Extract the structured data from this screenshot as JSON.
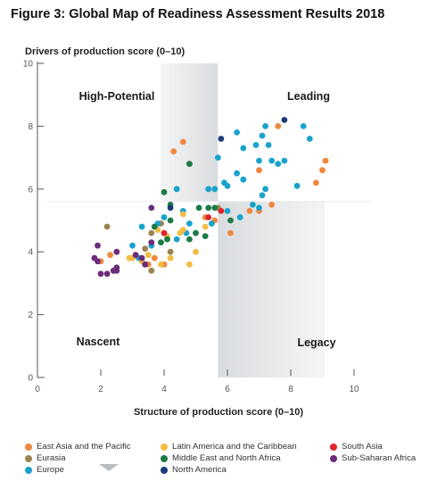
{
  "figure_title": "Figure 3: Global Map of Readiness Assessment Results 2018",
  "chart_data": {
    "type": "scatter",
    "title": "Figure 3: Global Map of Readiness Assessment Results 2018",
    "xlabel": "Structure of production score (0–10)",
    "ylabel": "Drivers of production score (0–10)",
    "xlim": [
      0,
      10
    ],
    "ylim": [
      0,
      10
    ],
    "x_ticks": [
      "0",
      "2",
      "4",
      "6",
      "8",
      "10"
    ],
    "y_ticks": [
      "0",
      "2",
      "4",
      "6",
      "8",
      "10"
    ],
    "grid": false,
    "threshold_x": 5.7,
    "threshold_y": 5.6,
    "quadrant_labels": {
      "top_left": "High-Potential",
      "top_right": "Leading",
      "bottom_left": "Nascent",
      "bottom_right": "Legacy"
    },
    "legend_position": "bottom",
    "series": [
      {
        "name": "East Asia and the Pacific",
        "color": "#f0883e",
        "points": [
          [
            4.3,
            7.2
          ],
          [
            4.6,
            7.5
          ],
          [
            4.8,
            6.8
          ],
          [
            7.0,
            6.6
          ],
          [
            7.6,
            8.0
          ],
          [
            8.8,
            6.2
          ],
          [
            9.0,
            6.6
          ],
          [
            9.1,
            6.9
          ],
          [
            7.0,
            5.3
          ],
          [
            7.4,
            5.5
          ],
          [
            6.1,
            4.6
          ],
          [
            4.0,
            3.6
          ],
          [
            3.7,
            3.8
          ],
          [
            3.5,
            3.6
          ],
          [
            2.3,
            3.9
          ],
          [
            2.0,
            3.7
          ],
          [
            5.6,
            5.0
          ],
          [
            5.3,
            5.1
          ],
          [
            6.7,
            5.3
          ]
        ]
      },
      {
        "name": "Eurasia",
        "color": "#9c8451",
        "points": [
          [
            2.2,
            4.8
          ],
          [
            3.4,
            4.1
          ],
          [
            3.6,
            4.6
          ],
          [
            3.9,
            4.9
          ],
          [
            5.7,
            5.4
          ],
          [
            4.2,
            4.0
          ],
          [
            3.6,
            3.4
          ]
        ]
      },
      {
        "name": "Europe",
        "color": "#1aa3cc",
        "points": [
          [
            5.4,
            6.0
          ],
          [
            5.6,
            6.0
          ],
          [
            5.7,
            7.0
          ],
          [
            6.0,
            6.1
          ],
          [
            6.3,
            6.5
          ],
          [
            6.5,
            6.3
          ],
          [
            6.3,
            7.8
          ],
          [
            6.5,
            7.3
          ],
          [
            6.9,
            7.4
          ],
          [
            7.0,
            6.9
          ],
          [
            7.1,
            7.7
          ],
          [
            7.2,
            8.0
          ],
          [
            7.3,
            7.4
          ],
          [
            7.4,
            6.9
          ],
          [
            7.6,
            6.8
          ],
          [
            7.8,
            6.9
          ],
          [
            8.2,
            6.1
          ],
          [
            8.4,
            8.0
          ],
          [
            8.6,
            7.6
          ],
          [
            7.1,
            5.8
          ],
          [
            7.2,
            6.0
          ],
          [
            6.8,
            5.5
          ],
          [
            6.4,
            5.1
          ],
          [
            7.0,
            5.4
          ],
          [
            6.0,
            5.3
          ],
          [
            5.5,
            4.9
          ],
          [
            4.8,
            4.9
          ],
          [
            4.6,
            5.3
          ],
          [
            4.7,
            4.6
          ],
          [
            4.4,
            4.4
          ],
          [
            4.0,
            5.1
          ],
          [
            3.8,
            4.9
          ],
          [
            3.6,
            4.2
          ],
          [
            4.4,
            6.0
          ],
          [
            3.3,
            4.8
          ],
          [
            3.0,
            4.2
          ],
          [
            3.2,
            3.8
          ],
          [
            5.9,
            6.2
          ]
        ]
      },
      {
        "name": "Latin America and the Caribbean",
        "color": "#f3bd45",
        "points": [
          [
            2.9,
            3.8
          ],
          [
            3.0,
            3.8
          ],
          [
            3.3,
            3.7
          ],
          [
            3.5,
            3.9
          ],
          [
            3.9,
            3.6
          ],
          [
            4.2,
            3.8
          ],
          [
            4.5,
            4.6
          ],
          [
            4.6,
            4.7
          ],
          [
            4.8,
            3.6
          ],
          [
            5.0,
            4.0
          ],
          [
            5.3,
            4.8
          ],
          [
            3.8,
            4.7
          ],
          [
            4.1,
            4.5
          ],
          [
            4.6,
            5.2
          ]
        ]
      },
      {
        "name": "Middle East and North Africa",
        "color": "#1d7a45",
        "points": [
          [
            4.0,
            5.9
          ],
          [
            4.2,
            5.5
          ],
          [
            3.7,
            4.8
          ],
          [
            4.2,
            5.0
          ],
          [
            4.1,
            4.4
          ],
          [
            3.9,
            4.3
          ],
          [
            4.8,
            6.8
          ],
          [
            5.1,
            5.4
          ],
          [
            5.4,
            5.4
          ],
          [
            5.3,
            4.5
          ],
          [
            6.1,
            5.0
          ],
          [
            5.6,
            5.4
          ],
          [
            5.0,
            4.6
          ],
          [
            4.8,
            4.4
          ]
        ]
      },
      {
        "name": "North America",
        "color": "#1a3c7a",
        "points": [
          [
            5.8,
            7.6
          ],
          [
            7.8,
            8.2
          ],
          [
            4.2,
            5.4
          ]
        ]
      },
      {
        "name": "South Asia",
        "color": "#e2232c",
        "points": [
          [
            5.4,
            5.1
          ],
          [
            5.8,
            5.3
          ],
          [
            4.0,
            4.6
          ]
        ]
      },
      {
        "name": "Sub-Saharan Africa",
        "color": "#6b2c7a",
        "points": [
          [
            1.8,
            3.8
          ],
          [
            1.9,
            3.7
          ],
          [
            2.0,
            3.3
          ],
          [
            2.2,
            3.3
          ],
          [
            2.4,
            3.4
          ],
          [
            2.5,
            3.4
          ],
          [
            2.5,
            3.5
          ],
          [
            1.9,
            4.2
          ],
          [
            3.1,
            3.9
          ],
          [
            3.3,
            3.8
          ],
          [
            3.4,
            3.6
          ],
          [
            3.6,
            4.3
          ],
          [
            2.5,
            4.0
          ],
          [
            3.6,
            5.4
          ]
        ]
      }
    ]
  },
  "legend": {
    "items": [
      {
        "label": "East Asia and the Pacific",
        "color": "#f0883e"
      },
      {
        "label": "Eurasia",
        "color": "#9c8451"
      },
      {
        "label": "Europe",
        "color": "#1aa3cc"
      },
      {
        "label": "Latin America and the Caribbean",
        "color": "#f3bd45"
      },
      {
        "label": "Middle East and North Africa",
        "color": "#1d7a45"
      },
      {
        "label": "North America",
        "color": "#1a3c7a"
      },
      {
        "label": "South Asia",
        "color": "#e2232c"
      },
      {
        "label": "Sub-Saharan Africa",
        "color": "#6b2c7a"
      }
    ]
  }
}
